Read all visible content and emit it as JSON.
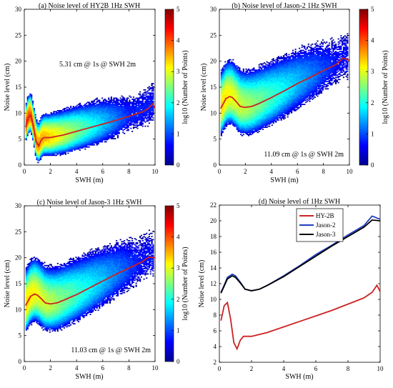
{
  "figure": {
    "panels": [
      {
        "id": "a",
        "title": "(a) Noise level of HY2B 1Hz SWH",
        "xlabel": "SWH (m)",
        "ylabel": "Noise level (cm)",
        "annotation": "5.31 cm @ 1s @ SWH 2m",
        "colorbar_label": "log10 (Number of Points)"
      },
      {
        "id": "b",
        "title": "(b) Noise level of Jason-2 1Hz SWH",
        "xlabel": "SWH (m)",
        "ylabel": "Noise level (cm)",
        "annotation": "11.09 cm @ 1s @ SWH 2m",
        "colorbar_label": "log10 (Number of Points)"
      },
      {
        "id": "c",
        "title": "(c) Noise level of Jason-3 1Hz SWH",
        "xlabel": "SWH (m)",
        "ylabel": "Noise level (cm)",
        "annotation": "11.03 cm @ 1s @ SWH 2m",
        "colorbar_label": "log10 (Number of Points)"
      },
      {
        "id": "d",
        "title": "(d) Noise level of 1Hz SWH",
        "xlabel": "SWH (m)",
        "ylabel": "Noise level (cm)"
      }
    ]
  },
  "chart_data": [
    {
      "type": "heatmap",
      "title": "(a) Noise level of HY2B 1Hz SWH",
      "xlabel": "SWH (m)",
      "ylabel": "Noise level (cm)",
      "xlim": [
        0,
        10
      ],
      "ylim": [
        0,
        30
      ],
      "xticks": [
        0,
        2,
        4,
        6,
        8,
        10
      ],
      "yticks": [
        0,
        5,
        10,
        15,
        20,
        25,
        30
      ],
      "colorbar": {
        "label": "log10 (Number of Points)",
        "range": [
          0,
          5
        ],
        "ticks": [
          0,
          1,
          2,
          3,
          4,
          5
        ],
        "colormap": "jet"
      },
      "annotation": "5.31 cm @ 1s @ SWH 2m",
      "curve": {
        "color": "#cc2222",
        "x": [
          0.1,
          0.3,
          0.5,
          0.7,
          0.9,
          1.1,
          1.3,
          1.5,
          1.8,
          2,
          3,
          4,
          5,
          6,
          7,
          8,
          9,
          9.5,
          9.8,
          10
        ],
        "y": [
          7.3,
          9.2,
          9.6,
          7.5,
          4.5,
          3.7,
          4.8,
          5.3,
          5.3,
          5.3,
          5.8,
          6.5,
          7.2,
          7.9,
          8.6,
          9.4,
          10.2,
          10.9,
          11.8,
          11.0
        ]
      }
    },
    {
      "type": "heatmap",
      "title": "(b) Noise level of Jason-2 1Hz SWH",
      "xlabel": "SWH (m)",
      "ylabel": "Noise level (cm)",
      "xlim": [
        0,
        10
      ],
      "ylim": [
        0,
        30
      ],
      "xticks": [
        0,
        2,
        4,
        6,
        8,
        10
      ],
      "yticks": [
        0,
        5,
        10,
        15,
        20,
        25,
        30
      ],
      "colorbar": {
        "label": "log10 (Number of Points)",
        "range": [
          0,
          5
        ],
        "ticks": [
          0,
          1,
          2,
          3,
          4,
          5
        ],
        "colormap": "jet"
      },
      "annotation": "11.09 cm @ 1s @ SWH 2m",
      "curve": {
        "color": "#cc2222",
        "x": [
          0.1,
          0.3,
          0.5,
          0.8,
          1,
          1.3,
          1.6,
          2,
          2.5,
          3,
          4,
          5,
          6,
          7,
          8,
          9,
          9.5,
          10
        ],
        "y": [
          10.9,
          11.8,
          12.8,
          13.2,
          13.0,
          12.2,
          11.3,
          11.1,
          11.3,
          11.8,
          13.0,
          14.3,
          15.7,
          16.9,
          18.2,
          19.4,
          20.6,
          20.2
        ]
      }
    },
    {
      "type": "heatmap",
      "title": "(c) Noise level of Jason-3 1Hz SWH",
      "xlabel": "SWH (m)",
      "ylabel": "Noise level (cm)",
      "xlim": [
        0,
        10
      ],
      "ylim": [
        0,
        30
      ],
      "xticks": [
        0,
        2,
        4,
        6,
        8,
        10
      ],
      "yticks": [
        0,
        5,
        10,
        15,
        20,
        25,
        30
      ],
      "colorbar": {
        "label": "log10 (Number of Points)",
        "range": [
          0,
          5
        ],
        "ticks": [
          0,
          1,
          2,
          3,
          4,
          5
        ],
        "colormap": "jet"
      },
      "annotation": "11.03 cm @ 1s @ SWH 2m",
      "curve": {
        "color": "#cc2222",
        "x": [
          0.1,
          0.3,
          0.5,
          0.8,
          1,
          1.3,
          1.6,
          2,
          2.5,
          3,
          4,
          5,
          6,
          7,
          8,
          9,
          9.5,
          10
        ],
        "y": [
          10.8,
          11.7,
          12.6,
          13.0,
          12.8,
          12.1,
          11.3,
          11.1,
          11.3,
          11.8,
          12.9,
          14.2,
          15.5,
          16.8,
          18.0,
          19.2,
          20.1,
          20.0
        ]
      }
    },
    {
      "type": "line",
      "title": "(d) Noise level of 1Hz SWH",
      "xlabel": "SWH (m)",
      "ylabel": "Noise level (cm)",
      "xlim": [
        0,
        10
      ],
      "ylim": [
        2,
        22
      ],
      "xticks": [
        0,
        2,
        4,
        6,
        8,
        10
      ],
      "yticks": [
        2,
        4,
        6,
        8,
        10,
        12,
        14,
        16,
        18,
        20,
        22
      ],
      "legend": "top-center",
      "series": [
        {
          "name": "HY-2B",
          "color": "#cc2222",
          "x": [
            0.1,
            0.3,
            0.5,
            0.7,
            0.9,
            1.1,
            1.3,
            1.5,
            1.8,
            2,
            3,
            4,
            5,
            6,
            7,
            8,
            9,
            9.5,
            9.8,
            10
          ],
          "y": [
            7.3,
            9.2,
            9.6,
            7.5,
            4.5,
            3.7,
            4.8,
            5.3,
            5.3,
            5.3,
            5.8,
            6.5,
            7.2,
            7.9,
            8.6,
            9.4,
            10.2,
            10.9,
            11.8,
            11.0
          ]
        },
        {
          "name": "Jason-2",
          "color": "#1f3fbf",
          "x": [
            0.1,
            0.3,
            0.5,
            0.8,
            1,
            1.3,
            1.6,
            2,
            2.5,
            3,
            4,
            5,
            6,
            7,
            8,
            9,
            9.5,
            10
          ],
          "y": [
            10.9,
            11.8,
            12.8,
            13.2,
            13.0,
            12.2,
            11.3,
            11.1,
            11.3,
            11.8,
            13.0,
            14.3,
            15.7,
            16.9,
            18.2,
            19.4,
            20.6,
            20.2
          ]
        },
        {
          "name": "Jason-3",
          "color": "#000000",
          "x": [
            0.1,
            0.3,
            0.5,
            0.8,
            1,
            1.3,
            1.6,
            2,
            2.5,
            3,
            4,
            5,
            6,
            7,
            8,
            9,
            9.5,
            10
          ],
          "y": [
            10.8,
            11.7,
            12.6,
            13.0,
            12.8,
            12.1,
            11.3,
            11.1,
            11.3,
            11.8,
            12.9,
            14.2,
            15.5,
            16.8,
            18.0,
            19.2,
            20.1,
            20.0
          ]
        }
      ]
    }
  ]
}
